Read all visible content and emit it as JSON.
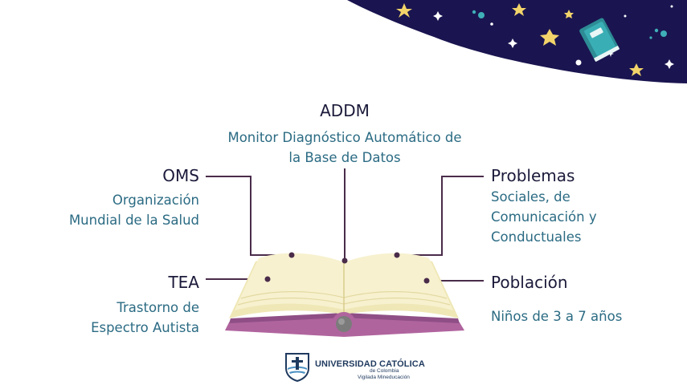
{
  "terms": {
    "addm": {
      "title": "ADDM",
      "lines": [
        "Monitor Diagnóstico Automático de",
        "la Base de Datos"
      ]
    },
    "oms": {
      "title": "OMS",
      "lines": [
        "Organización",
        "Mundial de la Salud"
      ]
    },
    "tea": {
      "title": "TEA",
      "lines": [
        "Trastorno de",
        "Espectro Autista"
      ]
    },
    "problemas": {
      "title": "Problemas",
      "lines": [
        "Sociales, de",
        "Comunicación y",
        "Conductuales"
      ]
    },
    "poblacion": {
      "title": "Población",
      "lines": [
        "Niños de 3 a 7 años"
      ]
    }
  },
  "logo": {
    "name_prefix": "UNIVERSIDAD ",
    "name_strong": "CATÓLICA",
    "sub": "de Colombia",
    "tagline": "Vigilada Mineducación"
  },
  "colors": {
    "title": "#1b1a3a",
    "description": "#2b6b83",
    "connector": "#4a2c4a",
    "sky": "#1a1550",
    "star": "#f3d46a",
    "book_cover": "#b0649e"
  }
}
